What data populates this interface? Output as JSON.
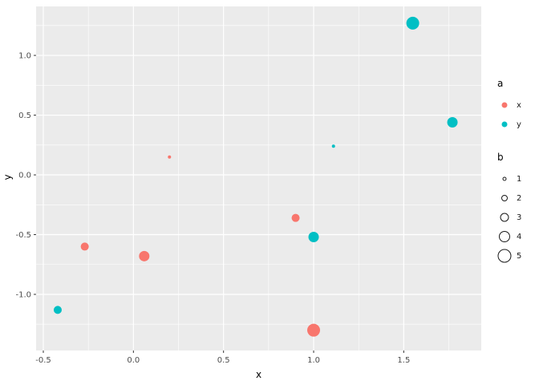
{
  "chart_data": {
    "type": "scatter",
    "title": "",
    "xlabel": "x",
    "ylabel": "y",
    "xlim": [
      -0.54,
      1.93
    ],
    "ylim": [
      -1.47,
      1.41
    ],
    "x_ticks": [
      -0.5,
      0.0,
      0.5,
      1.0,
      1.5
    ],
    "x_tick_labels": [
      "-0.5",
      "0.0",
      "0.5",
      "1.0",
      "1.5"
    ],
    "y_ticks": [
      -1.0,
      -0.5,
      0.0,
      0.5,
      1.0
    ],
    "y_tick_labels": [
      "-1.0",
      "-0.5",
      "0.0",
      "0.5",
      "1.0"
    ],
    "grid": true,
    "panel_bg": "#EBEBEB",
    "grid_color": "#FFFFFF",
    "legend_position": "right",
    "series": [
      {
        "name": "x",
        "color": "#F8766D",
        "points": [
          {
            "x": 0.2,
            "y": 0.15,
            "size": 1
          },
          {
            "x": -0.27,
            "y": -0.6,
            "size": 3
          },
          {
            "x": 0.06,
            "y": -0.68,
            "size": 4
          },
          {
            "x": 0.9,
            "y": -0.36,
            "size": 3
          },
          {
            "x": 1.0,
            "y": -1.3,
            "size": 5
          }
        ]
      },
      {
        "name": "y",
        "color": "#00BFC4",
        "points": [
          {
            "x": 1.55,
            "y": 1.27,
            "size": 5
          },
          {
            "x": 1.77,
            "y": 0.44,
            "size": 4
          },
          {
            "x": 1.11,
            "y": 0.24,
            "size": 1
          },
          {
            "x": 1.0,
            "y": -0.52,
            "size": 4
          },
          {
            "x": -0.42,
            "y": -1.13,
            "size": 3
          }
        ]
      }
    ],
    "legends": [
      {
        "title": "a",
        "type": "color",
        "entries": [
          {
            "label": "x",
            "color": "#F8766D"
          },
          {
            "label": "y",
            "color": "#00BFC4"
          }
        ]
      },
      {
        "title": "b",
        "type": "size",
        "entries": [
          {
            "label": "1",
            "size": 1
          },
          {
            "label": "2",
            "size": 2
          },
          {
            "label": "3",
            "size": 3
          },
          {
            "label": "4",
            "size": 4
          },
          {
            "label": "5",
            "size": 5
          }
        ]
      }
    ]
  }
}
